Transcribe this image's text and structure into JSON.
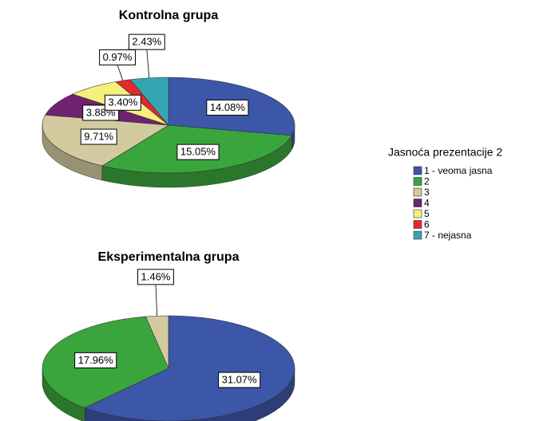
{
  "chart_data": [
    {
      "type": "pie",
      "title": "Kontrolna grupa",
      "categories": [
        "1 - veoma jasna",
        "2",
        "3",
        "4",
        "5",
        "6",
        "7 - nejasna"
      ],
      "values": [
        14.08,
        15.05,
        9.71,
        3.88,
        3.4,
        0.97,
        2.43
      ],
      "value_labels": [
        "14.08%",
        "15.05%",
        "9.71%",
        "3.88%",
        "3.40%",
        "0.97%",
        "2.43%"
      ],
      "colors": [
        "#3c56a8",
        "#3aa53c",
        "#d3cb9f",
        "#6e2270",
        "#f4f07a",
        "#e4282c",
        "#35a6b1"
      ]
    },
    {
      "type": "pie",
      "title": "Eksperimentalna grupa",
      "categories": [
        "1 - veoma jasna",
        "2",
        "3"
      ],
      "values": [
        31.07,
        17.96,
        1.46
      ],
      "value_labels": [
        "31.07%",
        "17.96%",
        "1.46%"
      ],
      "colors": [
        "#3c56a8",
        "#3aa53c",
        "#d3cb9f"
      ]
    }
  ],
  "legend": {
    "title": "Jasnoća prezentacije 2",
    "items": [
      {
        "name": "1 - veoma jasna",
        "color": "#3c56a8"
      },
      {
        "name": "2",
        "color": "#3aa53c"
      },
      {
        "name": "3",
        "color": "#d3cb9f"
      },
      {
        "name": "4",
        "color": "#6e2270"
      },
      {
        "name": "5",
        "color": "#f4f07a"
      },
      {
        "name": "6",
        "color": "#e4282c"
      },
      {
        "name": "7 - nejasna",
        "color": "#35a6b1"
      }
    ]
  }
}
